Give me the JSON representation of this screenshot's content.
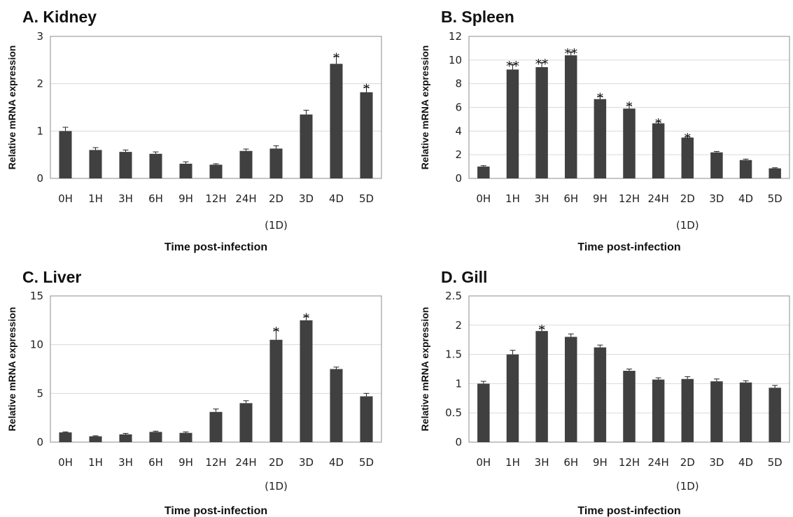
{
  "chart_data": [
    {
      "type": "bar",
      "title": "A. Kidney",
      "ylabel": "Relative mRNA expression",
      "xlabel": "Time post-infection",
      "sublabel": "(1D)",
      "categories": [
        "0H",
        "1H",
        "3H",
        "6H",
        "9H",
        "12H",
        "24H",
        "2D",
        "3D",
        "4D",
        "5D"
      ],
      "values": [
        1.0,
        0.6,
        0.56,
        0.52,
        0.31,
        0.29,
        0.58,
        0.63,
        1.35,
        2.42,
        1.82
      ],
      "errors": [
        0.08,
        0.05,
        0.04,
        0.04,
        0.04,
        0.02,
        0.04,
        0.06,
        0.09,
        0.16,
        0.11
      ],
      "significance": [
        "",
        "",
        "",
        "",
        "",
        "",
        "",
        "",
        "",
        "*",
        "*"
      ],
      "ylim": [
        0,
        3
      ],
      "yticks": [
        "0",
        "1",
        "2",
        "3"
      ],
      "grid": true,
      "color": "#404040"
    },
    {
      "type": "bar",
      "title": "B. Spleen",
      "ylabel": "Relative mRNA expression",
      "xlabel": "Time post-infection",
      "sublabel": "(1D)",
      "categories": [
        "0H",
        "1H",
        "3H",
        "6H",
        "9H",
        "12H",
        "24H",
        "2D",
        "3D",
        "4D",
        "5D"
      ],
      "values": [
        1.0,
        9.2,
        9.4,
        10.4,
        6.7,
        5.9,
        4.65,
        3.45,
        2.2,
        1.55,
        0.85
      ],
      "errors": [
        0.08,
        0.45,
        0.4,
        0.3,
        0.25,
        0.3,
        0.15,
        0.1,
        0.08,
        0.08,
        0.05
      ],
      "significance": [
        "",
        "**",
        "**",
        "**",
        "*",
        "*",
        "*",
        "*",
        "",
        "",
        ""
      ],
      "ylim": [
        0,
        12
      ],
      "yticks": [
        "0",
        "2",
        "4",
        "6",
        "8",
        "10",
        "12"
      ],
      "grid": true,
      "color": "#404040"
    },
    {
      "type": "bar",
      "title": "C. Liver",
      "ylabel": "Relative mRNA expression",
      "xlabel": "Time post-infection",
      "sublabel": "(1D)",
      "categories": [
        "0H",
        "1H",
        "3H",
        "6H",
        "9H",
        "12H",
        "24H",
        "2D",
        "3D",
        "4D",
        "5D"
      ],
      "values": [
        1.0,
        0.6,
        0.8,
        1.05,
        0.95,
        3.1,
        4.0,
        10.5,
        12.5,
        7.5,
        4.7
      ],
      "errors": [
        0.05,
        0.05,
        0.1,
        0.08,
        0.1,
        0.3,
        0.25,
        1.0,
        0.4,
        0.2,
        0.3
      ],
      "significance": [
        "",
        "",
        "",
        "",
        "",
        "",
        "",
        "*",
        "*",
        "",
        ""
      ],
      "ylim": [
        0,
        15
      ],
      "yticks": [
        "0",
        "5",
        "10",
        "15"
      ],
      "grid": true,
      "color": "#404040"
    },
    {
      "type": "bar",
      "title": "D. Gill",
      "ylabel": "Relative mRNA expression",
      "xlabel": "Time post-infection",
      "sublabel": "(1D)",
      "categories": [
        "0H",
        "1H",
        "3H",
        "6H",
        "9H",
        "12H",
        "24H",
        "2D",
        "3D",
        "4D",
        "5D"
      ],
      "values": [
        1.0,
        1.5,
        1.9,
        1.8,
        1.62,
        1.22,
        1.07,
        1.08,
        1.04,
        1.02,
        0.93
      ],
      "errors": [
        0.04,
        0.07,
        0.05,
        0.05,
        0.04,
        0.03,
        0.03,
        0.04,
        0.04,
        0.03,
        0.04
      ],
      "significance": [
        "",
        "",
        "*",
        "",
        "",
        "",
        "",
        "",
        "",
        "",
        ""
      ],
      "ylim": [
        0,
        2.5
      ],
      "yticks": [
        "0",
        "0.5",
        "1",
        "1.5",
        "2",
        "2.5"
      ],
      "grid": true,
      "color": "#404040"
    }
  ]
}
